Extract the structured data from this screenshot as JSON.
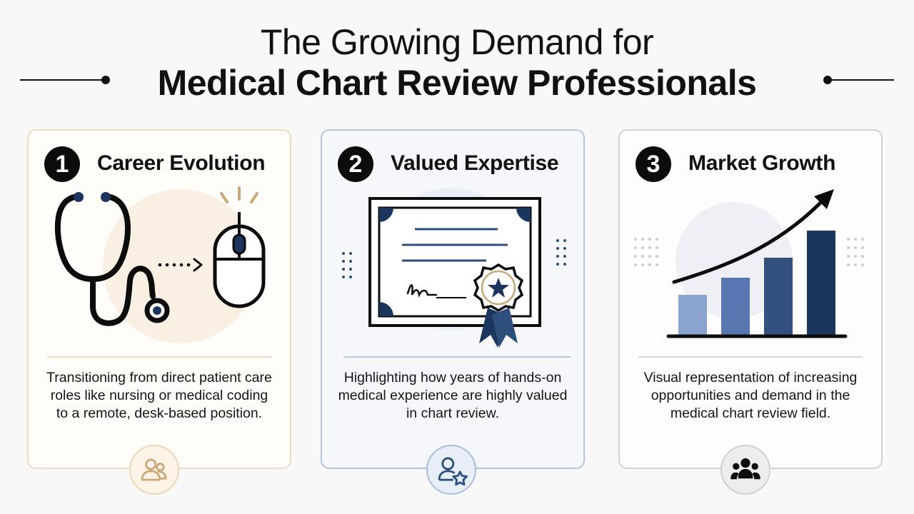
{
  "header": {
    "title_line1": "The Growing Demand for",
    "title_line2": "Medical Chart Review Professionals"
  },
  "cards": [
    {
      "number": "1",
      "title": "Career Evolution",
      "description": "Transitioning from direct patient care roles like nursing or medical coding to a remote, desk-based position.",
      "illustration": "stethoscope-to-mouse-icon",
      "badge_icon": "users-icon",
      "accent": "#c9a87a"
    },
    {
      "number": "2",
      "title": "Valued Expertise",
      "description": "Highlighting how years of hands-on medical experience are highly valued in chart review.",
      "illustration": "certificate-icon",
      "badge_icon": "user-star-icon",
      "accent": "#2d4f7c"
    },
    {
      "number": "3",
      "title": "Market Growth",
      "description": "Visual representation of increasing opportunities and demand in the medical chart review field.",
      "illustration": "growth-bar-chart-icon",
      "badge_icon": "group-icon",
      "accent": "#1c355c"
    }
  ],
  "colors": {
    "navy": "#1c355c",
    "mid_blue": "#4a6ea8",
    "light_blue": "#8aa3cf",
    "tan": "#c9a87a",
    "black": "#0c0c0c"
  }
}
